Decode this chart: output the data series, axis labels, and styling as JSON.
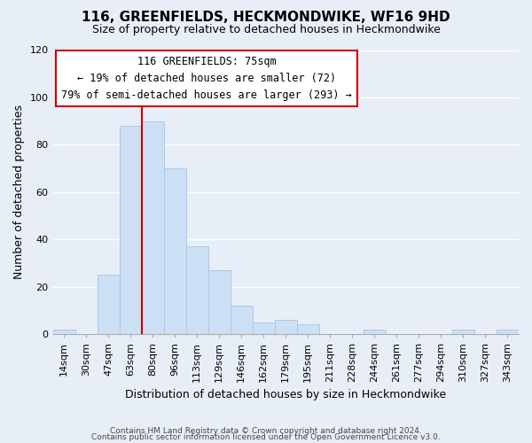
{
  "title": "116, GREENFIELDS, HECKMONDWIKE, WF16 9HD",
  "subtitle": "Size of property relative to detached houses in Heckmondwike",
  "xlabel": "Distribution of detached houses by size in Heckmondwike",
  "ylabel": "Number of detached properties",
  "footer_line1": "Contains HM Land Registry data © Crown copyright and database right 2024.",
  "footer_line2": "Contains public sector information licensed under the Open Government Licence v3.0.",
  "bin_labels": [
    "14sqm",
    "30sqm",
    "47sqm",
    "63sqm",
    "80sqm",
    "96sqm",
    "113sqm",
    "129sqm",
    "146sqm",
    "162sqm",
    "179sqm",
    "195sqm",
    "211sqm",
    "228sqm",
    "244sqm",
    "261sqm",
    "277sqm",
    "294sqm",
    "310sqm",
    "327sqm",
    "343sqm"
  ],
  "bin_values": [
    2,
    0,
    25,
    88,
    90,
    70,
    37,
    27,
    12,
    5,
    6,
    4,
    0,
    0,
    2,
    0,
    0,
    0,
    2,
    0,
    2
  ],
  "bar_color": "#cce0f5",
  "bar_edge_color": "#aac8e8",
  "vline_color": "#cc0000",
  "vline_x_index": 4,
  "annotation_title": "116 GREENFIELDS: 75sqm",
  "annotation_line1": "← 19% of detached houses are smaller (72)",
  "annotation_line2": "79% of semi-detached houses are larger (293) →",
  "annotation_box_color": "#ffffff",
  "annotation_box_edge": "#cc0000",
  "ylim": [
    0,
    120
  ],
  "yticks": [
    0,
    20,
    40,
    60,
    80,
    100,
    120
  ],
  "background_color": "#e8eef8",
  "grid_color": "#ffffff",
  "title_fontsize": 11,
  "subtitle_fontsize": 9,
  "ylabel_fontsize": 9,
  "xlabel_fontsize": 9,
  "tick_fontsize": 8,
  "annotation_fontsize": 8.5,
  "footer_fontsize": 6.5
}
